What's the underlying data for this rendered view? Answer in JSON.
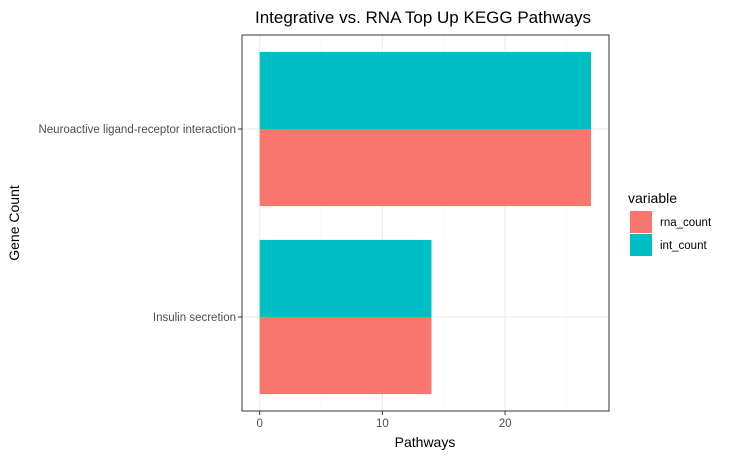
{
  "chart_data": {
    "type": "bar",
    "orientation": "horizontal",
    "title": "Integrative vs. RNA Top Up KEGG Pathways",
    "xlabel": "Pathways",
    "ylabel": "Gene Count",
    "categories": [
      "Neuroactive ligand-receptor interaction",
      "Insulin secretion"
    ],
    "series": [
      {
        "name": "rna_count",
        "values": [
          27,
          14
        ],
        "color": "#F8766D"
      },
      {
        "name": "int_count",
        "values": [
          27,
          14
        ],
        "color": "#00BFC4"
      }
    ],
    "xlim": [
      0,
      29
    ],
    "xticks": [
      0,
      10,
      20
    ],
    "grid": true,
    "legend": {
      "title": "variable",
      "position": "right"
    }
  }
}
